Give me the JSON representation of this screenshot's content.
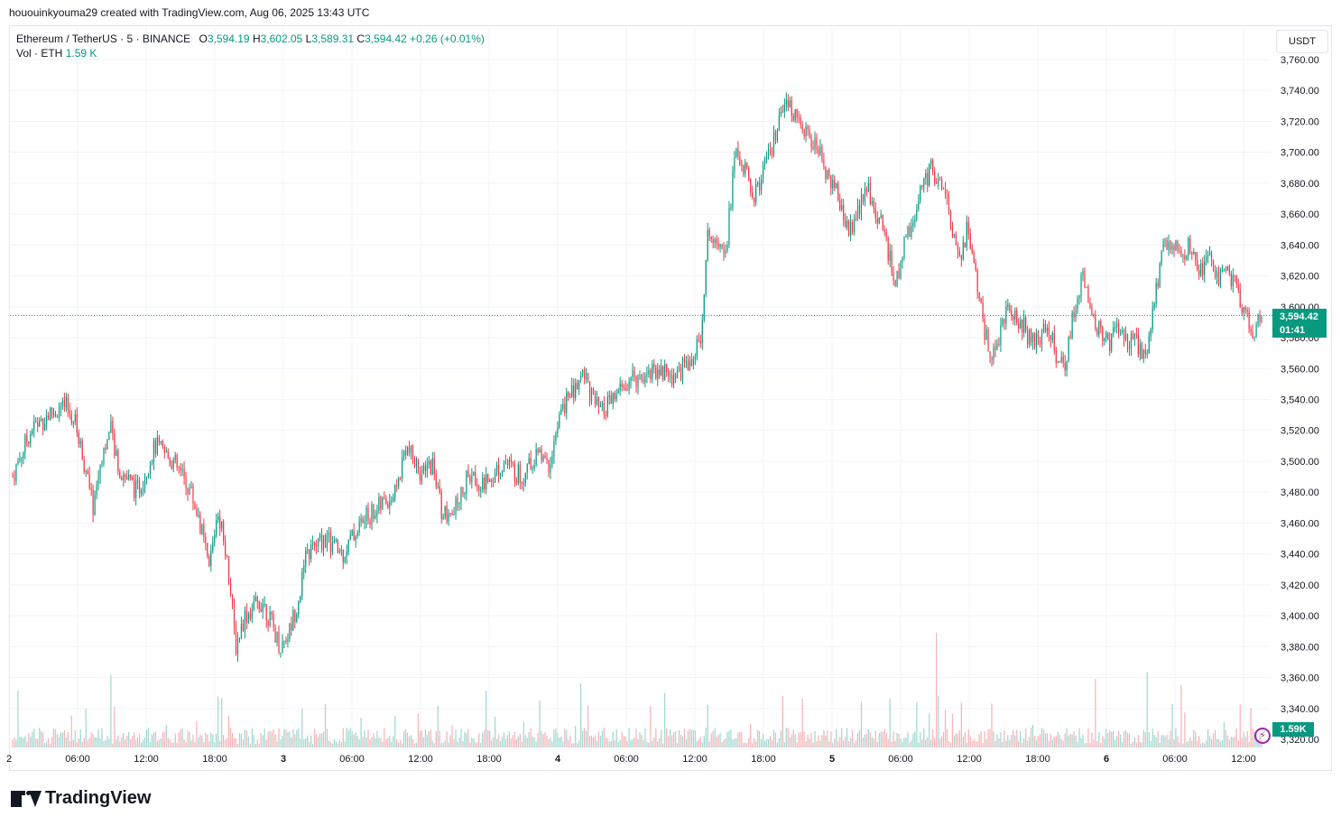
{
  "header": {
    "author_line": "hououinkyouma29 created with TradingView.com, Aug 06, 2025 13:43 UTC"
  },
  "legend": {
    "symbol": "Ethereum / TetherUS · 5 · BINANCE",
    "o_label": "O",
    "o_value": "3,594.19",
    "h_label": "H",
    "h_value": "3,602.05",
    "l_label": "L",
    "l_value": "3,589.31",
    "c_label": "C",
    "c_value": "3,594.42",
    "change": "+0.26 (+0.01%)",
    "vol_label": "Vol · ETH",
    "vol_value": "1.59 K"
  },
  "toolbar": {
    "currency": "USDT"
  },
  "price_badge": {
    "price": "3,594.42",
    "countdown": "01:41"
  },
  "volume_badge": {
    "value": "1.59K"
  },
  "branding": {
    "logo_text": "TradingView"
  },
  "colors": {
    "up": "#089981",
    "down": "#f23645",
    "up_volume": "#9fd7cf",
    "down_volume": "#f7b2b6",
    "grid": "#f0f3fa"
  },
  "chart_data": {
    "type": "candlestick",
    "interval": "5",
    "y_axis": {
      "ticks": [
        "3,760.00",
        "3,740.00",
        "3,720.00",
        "3,700.00",
        "3,680.00",
        "3,660.00",
        "3,640.00",
        "3,620.00",
        "3,600.00",
        "3,580.00",
        "3,560.00",
        "3,540.00",
        "3,520.00",
        "3,500.00",
        "3,480.00",
        "3,460.00",
        "3,440.00",
        "3,420.00",
        "3,400.00",
        "3,380.00",
        "3,360.00",
        "3,340.00",
        "3,320.00"
      ],
      "range": [
        3320,
        3760
      ]
    },
    "x_axis": {
      "ticks": [
        "2",
        "06:00",
        "12:00",
        "18:00",
        "3",
        "06:00",
        "12:00",
        "18:00",
        "4",
        "06:00",
        "12:00",
        "18:00",
        "5",
        "06:00",
        "12:00",
        "18:00",
        "6",
        "06:00",
        "12:00"
      ],
      "major_ticks": [
        "3",
        "4",
        "5",
        "6"
      ]
    },
    "current_price": 3594.42,
    "price_path": [
      [
        0,
        3490
      ],
      [
        2,
        3520
      ],
      [
        4,
        3530
      ],
      [
        6,
        3535
      ],
      [
        7,
        3525
      ],
      [
        8,
        3500
      ],
      [
        9,
        3470
      ],
      [
        10,
        3505
      ],
      [
        11,
        3520
      ],
      [
        12,
        3495
      ],
      [
        14,
        3480
      ],
      [
        16,
        3510
      ],
      [
        18,
        3500
      ],
      [
        20,
        3480
      ],
      [
        21,
        3460
      ],
      [
        22,
        3430
      ],
      [
        23,
        3470
      ],
      [
        24,
        3440
      ],
      [
        25,
        3380
      ],
      [
        26,
        3400
      ],
      [
        28,
        3410
      ],
      [
        30,
        3380
      ],
      [
        31,
        3390
      ],
      [
        32,
        3410
      ],
      [
        33,
        3440
      ],
      [
        35,
        3450
      ],
      [
        37,
        3440
      ],
      [
        39,
        3460
      ],
      [
        41,
        3470
      ],
      [
        43,
        3480
      ],
      [
        44,
        3510
      ],
      [
        46,
        3490
      ],
      [
        47,
        3500
      ],
      [
        48,
        3470
      ],
      [
        49,
        3460
      ],
      [
        51,
        3490
      ],
      [
        53,
        3485
      ],
      [
        55,
        3500
      ],
      [
        57,
        3490
      ],
      [
        59,
        3505
      ],
      [
        60,
        3495
      ],
      [
        61,
        3520
      ],
      [
        62,
        3540
      ],
      [
        63,
        3545
      ],
      [
        64,
        3560
      ],
      [
        65,
        3540
      ],
      [
        66,
        3530
      ],
      [
        68,
        3545
      ],
      [
        70,
        3555
      ],
      [
        72,
        3560
      ],
      [
        74,
        3555
      ],
      [
        76,
        3565
      ],
      [
        77,
        3575
      ],
      [
        78,
        3650
      ],
      [
        80,
        3640
      ],
      [
        81,
        3700
      ],
      [
        82,
        3690
      ],
      [
        83,
        3670
      ],
      [
        84,
        3685
      ],
      [
        85,
        3700
      ],
      [
        86,
        3720
      ],
      [
        87,
        3730
      ],
      [
        88,
        3725
      ],
      [
        89,
        3710
      ],
      [
        90,
        3705
      ],
      [
        91,
        3690
      ],
      [
        92,
        3680
      ],
      [
        93,
        3660
      ],
      [
        94,
        3650
      ],
      [
        95,
        3665
      ],
      [
        96,
        3675
      ],
      [
        97,
        3660
      ],
      [
        98,
        3640
      ],
      [
        99,
        3615
      ],
      [
        100,
        3640
      ],
      [
        101,
        3660
      ],
      [
        102,
        3680
      ],
      [
        103,
        3690
      ],
      [
        104,
        3680
      ],
      [
        105,
        3660
      ],
      [
        106,
        3630
      ],
      [
        107,
        3650
      ],
      [
        108,
        3620
      ],
      [
        109,
        3580
      ],
      [
        110,
        3570
      ],
      [
        111,
        3590
      ],
      [
        112,
        3600
      ],
      [
        113,
        3590
      ],
      [
        114,
        3580
      ],
      [
        115,
        3575
      ],
      [
        116,
        3590
      ],
      [
        117,
        3570
      ],
      [
        118,
        3560
      ],
      [
        119,
        3600
      ],
      [
        120,
        3620
      ],
      [
        121,
        3600
      ],
      [
        122,
        3580
      ],
      [
        123,
        3575
      ],
      [
        124,
        3590
      ],
      [
        125,
        3580
      ],
      [
        126,
        3575
      ],
      [
        127,
        3570
      ],
      [
        128,
        3600
      ],
      [
        129,
        3645
      ],
      [
        130,
        3640
      ],
      [
        131,
        3630
      ],
      [
        132,
        3640
      ],
      [
        133,
        3625
      ],
      [
        134,
        3630
      ],
      [
        135,
        3620
      ],
      [
        136,
        3625
      ],
      [
        137,
        3615
      ],
      [
        138,
        3600
      ],
      [
        139,
        3585
      ],
      [
        140,
        3594
      ]
    ]
  }
}
